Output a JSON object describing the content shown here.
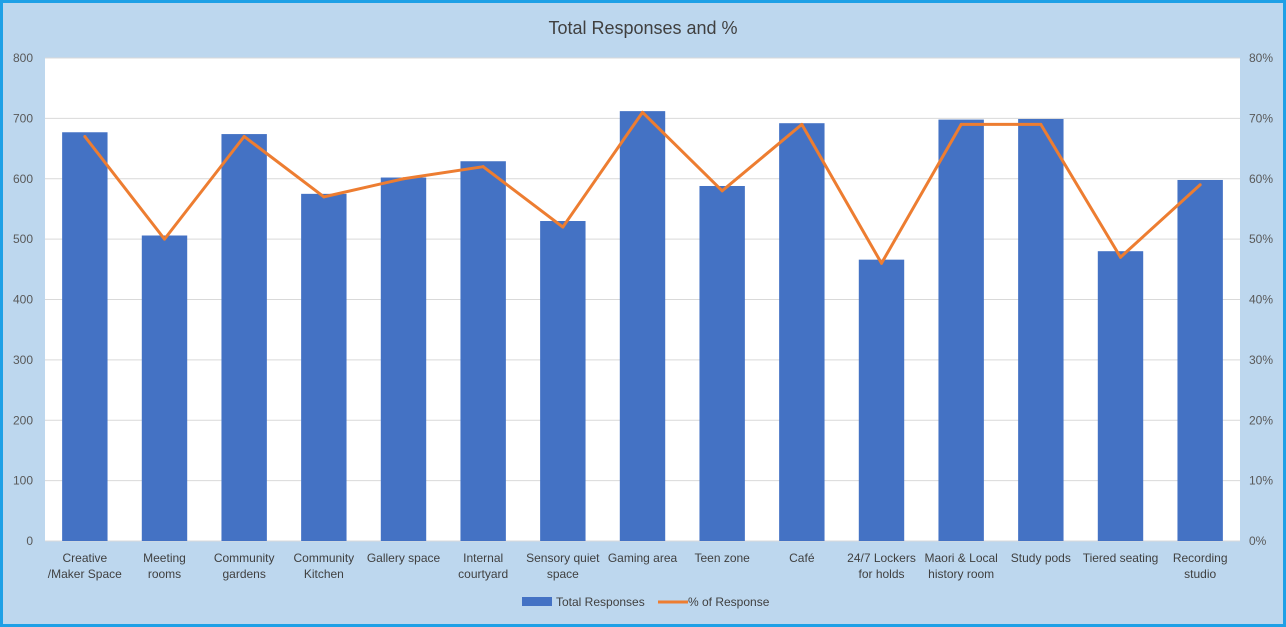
{
  "chart_data": {
    "type": "bar",
    "title": "Total Responses and %",
    "categories": [
      [
        "Creative",
        "/Maker Space"
      ],
      [
        "Meeting",
        "rooms"
      ],
      [
        "Community",
        "gardens"
      ],
      [
        "Community",
        "Kitchen"
      ],
      [
        "Gallery space"
      ],
      [
        "Internal",
        "courtyard"
      ],
      [
        "Sensory quiet",
        "space"
      ],
      [
        "Gaming area"
      ],
      [
        "Teen zone"
      ],
      [
        "Café"
      ],
      [
        "24/7 Lockers",
        "for holds"
      ],
      [
        "Maori & Local",
        "history room"
      ],
      [
        "Study pods"
      ],
      [
        "Tiered seating"
      ],
      [
        "Recording",
        "studio"
      ]
    ],
    "series": [
      {
        "name": "Total Responses",
        "type": "bar",
        "axis": "left",
        "color": "#4472c4",
        "values": [
          677,
          506,
          674,
          575,
          602,
          629,
          530,
          712,
          588,
          692,
          466,
          698,
          699,
          480,
          598
        ]
      },
      {
        "name": "% of Response",
        "type": "line",
        "axis": "right",
        "color": "#ed7d31",
        "values": [
          67,
          50,
          67,
          57,
          60,
          62,
          52,
          71,
          58,
          69,
          46,
          69,
          69,
          47,
          59
        ]
      }
    ],
    "ylim_left": [
      0,
      800
    ],
    "yticks_left": [
      "0",
      "100",
      "200",
      "300",
      "400",
      "500",
      "600",
      "700",
      "800"
    ],
    "ylim_right": [
      0,
      80
    ],
    "yticks_right": [
      "0%",
      "10%",
      "20%",
      "30%",
      "40%",
      "50%",
      "60%",
      "70%",
      "80%"
    ],
    "grid": true,
    "legend_position": "bottom",
    "colors": {
      "background": "#bdd7ee",
      "plot_area": "#ffffff",
      "border": "#1ea0e6",
      "gridline": "#d9d9d9"
    }
  }
}
